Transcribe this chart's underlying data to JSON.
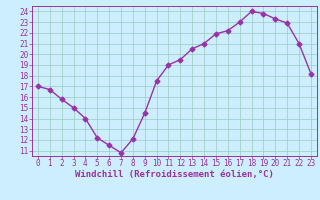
{
  "x": [
    0,
    1,
    2,
    3,
    4,
    5,
    6,
    7,
    8,
    9,
    10,
    11,
    12,
    13,
    14,
    15,
    16,
    17,
    18,
    19,
    20,
    21,
    22,
    23
  ],
  "y": [
    17.0,
    16.7,
    15.8,
    15.0,
    14.0,
    12.2,
    11.5,
    10.8,
    12.1,
    14.5,
    17.5,
    19.0,
    19.5,
    20.5,
    21.0,
    21.9,
    22.2,
    23.0,
    24.0,
    23.8,
    23.3,
    22.9,
    21.0,
    18.2
  ],
  "line_color": "#9933aa",
  "marker": "D",
  "marker_size": 2.5,
  "bg_color": "#cceeff",
  "grid_color": "#99ccbb",
  "xlabel": "Windchill (Refroidissement éolien,°C)",
  "xlim": [
    -0.5,
    23.5
  ],
  "ylim": [
    10.5,
    24.5
  ],
  "yticks": [
    11,
    12,
    13,
    14,
    15,
    16,
    17,
    18,
    19,
    20,
    21,
    22,
    23,
    24
  ],
  "xticks": [
    0,
    1,
    2,
    3,
    4,
    5,
    6,
    7,
    8,
    9,
    10,
    11,
    12,
    13,
    14,
    15,
    16,
    17,
    18,
    19,
    20,
    21,
    22,
    23
  ],
  "font_color": "#993399",
  "tick_fontsize": 5.5,
  "label_fontsize": 6.5
}
